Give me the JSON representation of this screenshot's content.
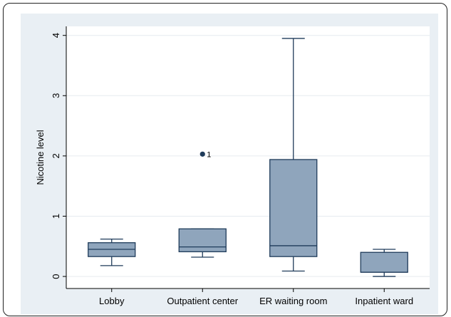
{
  "chart_data": {
    "type": "box",
    "title": "",
    "xlabel": "",
    "ylabel": "Nicotine level",
    "ylim": [
      -0.2,
      4.15
    ],
    "yticks": [
      0,
      1,
      2,
      3,
      4
    ],
    "grid": true,
    "legend": "none",
    "categories": [
      "Lobby",
      "Outpatient center",
      "ER waiting room",
      "Inpatient ward"
    ],
    "boxes": [
      {
        "category": "Lobby",
        "whisker_low": 0.18,
        "q1": 0.33,
        "median": 0.45,
        "q3": 0.56,
        "whisker_high": 0.62
      },
      {
        "category": "Outpatient center",
        "whisker_low": 0.32,
        "q1": 0.41,
        "median": 0.49,
        "q3": 0.79,
        "whisker_high": 0.79
      },
      {
        "category": "ER waiting room",
        "whisker_low": 0.09,
        "q1": 0.33,
        "median": 0.51,
        "q3": 1.94,
        "whisker_high": 3.95
      },
      {
        "category": "Inpatient ward",
        "whisker_low": 0.0,
        "q1": 0.07,
        "median": 0.07,
        "q3": 0.4,
        "whisker_high": 0.45
      }
    ],
    "outliers": [
      {
        "category": "Outpatient center",
        "value": 2.03,
        "label": "1"
      }
    ],
    "colors": {
      "outer_background": "#e9eff4",
      "plot_background": "#ffffff",
      "box_fill": "#8fa5bc",
      "box_stroke": "#1f3b5a",
      "grid": "#e6ebef",
      "axis": "#000000",
      "outlier": "#1f3b5a"
    }
  }
}
